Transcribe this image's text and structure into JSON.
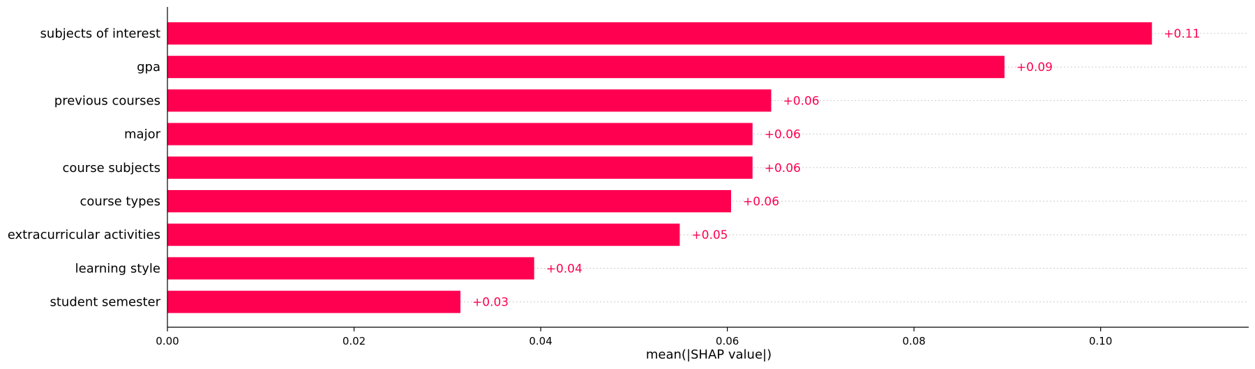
{
  "chart_data": {
    "type": "bar",
    "orientation": "horizontal",
    "categories": [
      "subjects of interest",
      "gpa",
      "previous courses",
      "major",
      "course subjects",
      "course types",
      "extracurricular activities",
      "learning style",
      "student semester"
    ],
    "values": [
      0.1055,
      0.0897,
      0.0647,
      0.0627,
      0.0627,
      0.0604,
      0.0549,
      0.0393,
      0.0314
    ],
    "value_labels": [
      "+0.11",
      "+0.09",
      "+0.06",
      "+0.06",
      "+0.06",
      "+0.06",
      "+0.05",
      "+0.04",
      "+0.03"
    ],
    "xlabel": "mean(|SHAP value|)",
    "ylabel": "",
    "title": "",
    "xlim": [
      0,
      0.116
    ],
    "xticks": [
      0,
      0.02,
      0.04,
      0.06,
      0.08,
      0.1
    ],
    "xtick_labels": [
      "0.00",
      "0.02",
      "0.04",
      "0.06",
      "0.08",
      "0.10"
    ],
    "grid": "dotted horizontal guides per bar",
    "legend": "none",
    "colors": {
      "bar": "#ff0051",
      "label": "#ff0051",
      "axis": "#000000",
      "guide": "#cccccc"
    }
  }
}
